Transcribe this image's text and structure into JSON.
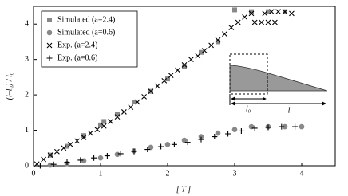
{
  "chart_data": {
    "type": "scatter",
    "x_label": "[ T ]",
    "y_label": "(l–l₀) / l₀",
    "xlim": [
      0,
      4.5
    ],
    "ylim": [
      0,
      4.5
    ],
    "xticks": [
      0,
      1,
      2,
      3,
      4
    ],
    "yticks": [
      0,
      1,
      2,
      3,
      4
    ],
    "legend": "upper-left",
    "annotations": [
      "l₀",
      "l"
    ],
    "series": [
      {
        "name": "Simulated (a=2.4)",
        "color": "#888888",
        "marker": "square",
        "x": [
          0.25,
          0.5,
          0.75,
          1.0,
          1.05,
          1.25,
          1.5,
          1.75,
          2.0,
          2.25,
          2.5,
          2.75,
          3.0,
          3.25,
          3.5,
          3.75
        ],
        "values": [
          0.3,
          0.55,
          0.85,
          1.15,
          1.25,
          1.45,
          1.8,
          2.1,
          2.45,
          2.8,
          3.2,
          3.5,
          4.4,
          4.35,
          4.35,
          4.35
        ]
      },
      {
        "name": "Simulated (a=0.6)",
        "color": "#888888",
        "marker": "circle",
        "x": [
          0.25,
          0.5,
          0.75,
          1.0,
          1.25,
          1.5,
          1.75,
          2.0,
          2.25,
          2.5,
          2.75,
          3.0,
          3.25,
          3.5,
          3.75,
          4.0
        ],
        "values": [
          0.02,
          0.06,
          0.14,
          0.22,
          0.32,
          0.42,
          0.52,
          0.6,
          0.72,
          0.82,
          0.92,
          1.02,
          1.1,
          1.1,
          1.1,
          1.1
        ]
      },
      {
        "name": "Exp. (a=2.4)",
        "color": "#000000",
        "marker": "x",
        "x": [
          0.05,
          0.15,
          0.25,
          0.35,
          0.45,
          0.55,
          0.65,
          0.75,
          0.85,
          0.95,
          1.05,
          1.15,
          1.25,
          1.35,
          1.45,
          1.55,
          1.65,
          1.75,
          1.85,
          1.95,
          2.05,
          2.15,
          2.25,
          2.35,
          2.45,
          2.55,
          2.65,
          2.75,
          2.85,
          2.95,
          3.05,
          3.15,
          3.25,
          3.3,
          3.4,
          3.5,
          3.6,
          3.45,
          3.55,
          3.65,
          3.75,
          3.85
        ],
        "values": [
          0.05,
          0.18,
          0.3,
          0.4,
          0.5,
          0.6,
          0.7,
          0.8,
          0.92,
          1.02,
          1.12,
          1.25,
          1.38,
          1.52,
          1.65,
          1.8,
          1.95,
          2.1,
          2.25,
          2.4,
          2.55,
          2.7,
          2.85,
          3.0,
          3.1,
          3.25,
          3.4,
          3.55,
          3.72,
          3.9,
          4.05,
          4.2,
          4.3,
          4.05,
          4.05,
          4.05,
          4.05,
          4.3,
          4.35,
          4.35,
          4.35,
          4.3
        ]
      },
      {
        "name": "Exp. (a=0.6)",
        "color": "#000000",
        "marker": "plus",
        "x": [
          0.1,
          0.3,
          0.5,
          0.7,
          0.9,
          1.1,
          1.3,
          1.5,
          1.7,
          1.9,
          2.1,
          2.3,
          2.5,
          2.7,
          2.9,
          3.1,
          3.3,
          3.5,
          3.7,
          3.9
        ],
        "values": [
          0.0,
          0.04,
          0.1,
          0.16,
          0.22,
          0.28,
          0.34,
          0.4,
          0.46,
          0.54,
          0.6,
          0.66,
          0.74,
          0.82,
          0.9,
          0.98,
          1.06,
          1.08,
          1.1,
          1.1
        ]
      }
    ]
  }
}
